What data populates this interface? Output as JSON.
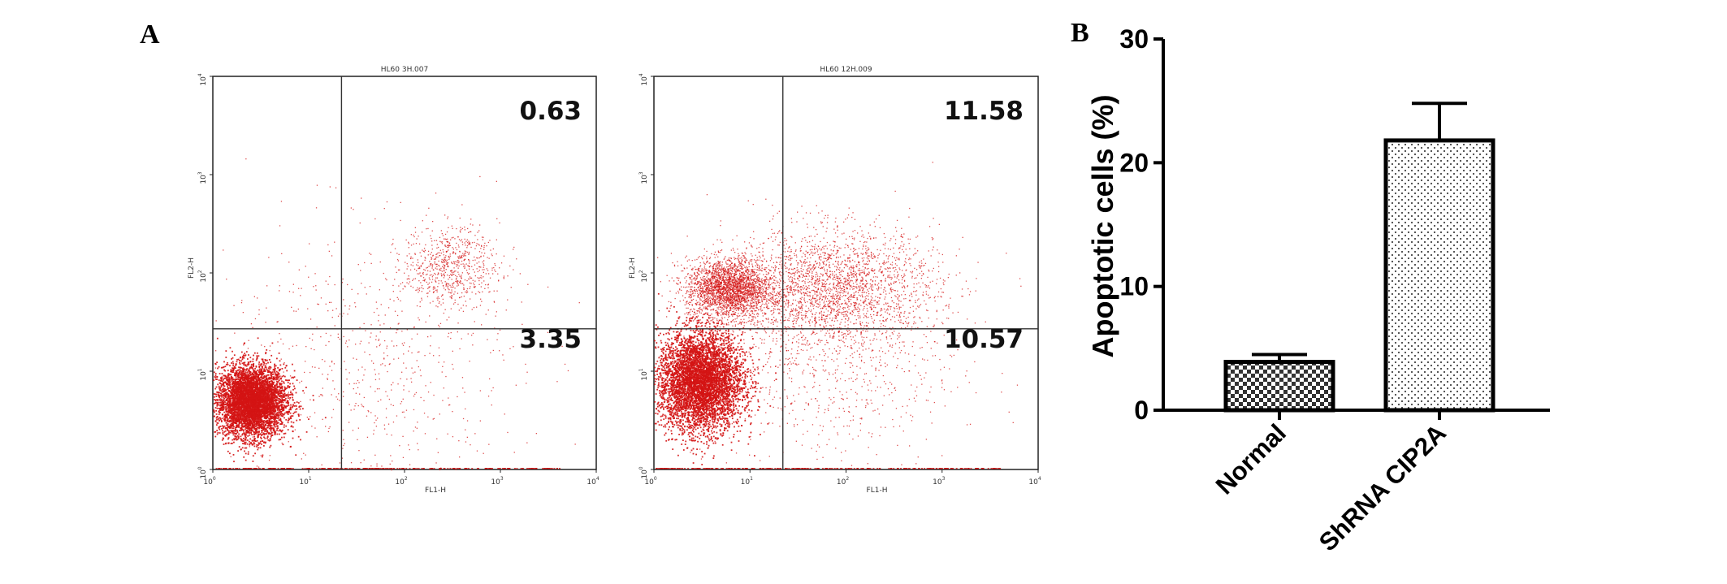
{
  "panels": {
    "a_label": "A",
    "b_label": "B"
  },
  "colors": {
    "events": "#d41414",
    "quadrant_lines": "#333333",
    "bar_stroke": "#000000"
  },
  "chart_data": [
    {
      "type": "scatter",
      "title": "HL60 3H.007",
      "xlabel": "FL1-H",
      "ylabel": "FL2-H",
      "scale": "log",
      "xlim": [
        1,
        10000
      ],
      "ylim": [
        1,
        10000
      ],
      "x_ticks": [
        {
          "base": "10",
          "exp": "0"
        },
        {
          "base": "10",
          "exp": "1"
        },
        {
          "base": "10",
          "exp": "2"
        },
        {
          "base": "10",
          "exp": "3"
        },
        {
          "base": "10",
          "exp": "4"
        }
      ],
      "y_ticks": [
        {
          "base": "10",
          "exp": "0"
        },
        {
          "base": "10",
          "exp": "1"
        },
        {
          "base": "10",
          "exp": "2"
        },
        {
          "base": "10",
          "exp": "3"
        },
        {
          "base": "10",
          "exp": "4"
        }
      ],
      "quadrant_gate": {
        "x": 22,
        "y": 27
      },
      "quadrant_values": {
        "upper_right": "0.63",
        "lower_right": "3.35"
      },
      "populations": [
        {
          "center": [
            2.5,
            5.0
          ],
          "spread_decades": [
            0.18,
            0.18
          ],
          "density": "dense"
        },
        {
          "center": [
            40,
            12
          ],
          "spread_decades": [
            0.8,
            0.7
          ],
          "density": "sparse"
        },
        {
          "center": [
            300,
            120
          ],
          "spread_decades": [
            0.25,
            0.2
          ],
          "density": "sparse"
        }
      ]
    },
    {
      "type": "scatter",
      "title": "HL60 12H.009",
      "xlabel": "FL1-H",
      "ylabel": "FL2-H",
      "scale": "log",
      "xlim": [
        1,
        10000
      ],
      "ylim": [
        1,
        10000
      ],
      "x_ticks": [
        {
          "base": "10",
          "exp": "0"
        },
        {
          "base": "10",
          "exp": "1"
        },
        {
          "base": "10",
          "exp": "2"
        },
        {
          "base": "10",
          "exp": "3"
        },
        {
          "base": "10",
          "exp": "4"
        }
      ],
      "y_ticks": [
        {
          "base": "10",
          "exp": "0"
        },
        {
          "base": "10",
          "exp": "1"
        },
        {
          "base": "10",
          "exp": "2"
        },
        {
          "base": "10",
          "exp": "3"
        },
        {
          "base": "10",
          "exp": "4"
        }
      ],
      "quadrant_gate": {
        "x": 22,
        "y": 27
      },
      "quadrant_values": {
        "upper_right": "11.58",
        "lower_right": "10.57"
      },
      "populations": [
        {
          "center": [
            3.0,
            8.0
          ],
          "spread_decades": [
            0.22,
            0.25
          ],
          "density": "dense"
        },
        {
          "center": [
            6.0,
            70
          ],
          "spread_decades": [
            0.22,
            0.15
          ],
          "density": "medium"
        },
        {
          "center": [
            70,
            70
          ],
          "spread_decades": [
            0.55,
            0.3
          ],
          "density": "medium"
        },
        {
          "center": [
            60,
            10
          ],
          "spread_decades": [
            0.7,
            0.5
          ],
          "density": "sparse"
        }
      ]
    },
    {
      "type": "bar",
      "categories": [
        "Normal",
        "ShRNA CIP2A"
      ],
      "values": [
        3.9,
        21.8
      ],
      "errors": [
        0.6,
        3.0
      ],
      "ylabel": "Apoptotic cells (%)",
      "ylim": [
        0,
        30
      ],
      "yticks": [
        "0",
        "10",
        "20",
        "30"
      ],
      "patterns": [
        "checkerboard",
        "dots"
      ]
    }
  ]
}
